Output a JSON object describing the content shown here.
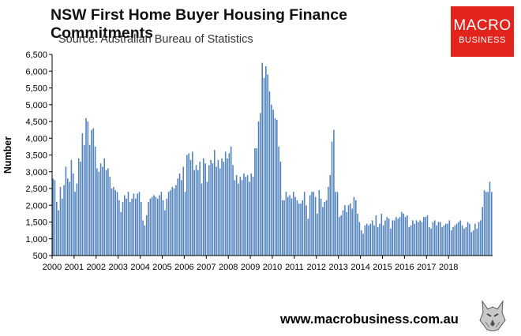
{
  "header": {
    "title": "NSW First Home Buyer Housing Finance Commitments",
    "subtitle": "Source: Australian Bureau of Statistics"
  },
  "logo": {
    "top": "MACRO",
    "bottom": "BUSINESS",
    "bg_color": "#e3241d"
  },
  "footer": {
    "url": "www.macrobusiness.com.au",
    "mascot": "wolf-icon"
  },
  "chart_data": {
    "type": "bar",
    "title": "NSW First Home Buyer Housing Finance Commitments",
    "ylabel": "Number",
    "xlabel": "",
    "ylim": [
      500,
      6500
    ],
    "yticks": [
      500,
      1000,
      1500,
      2000,
      2500,
      3000,
      3500,
      4000,
      4500,
      5000,
      5500,
      6000,
      6500
    ],
    "ytick_labels": [
      "500",
      "1,000",
      "1,500",
      "2,000",
      "2,500",
      "3,000",
      "3,500",
      "4,000",
      "4,500",
      "5,000",
      "5,500",
      "6,000",
      "6,500"
    ],
    "xticks": [
      "2000",
      "2001",
      "2002",
      "2003",
      "2004",
      "2005",
      "2006",
      "2007",
      "2008",
      "2009",
      "2010",
      "2011",
      "2012",
      "2013",
      "2014",
      "2015",
      "2016",
      "2017",
      "2018"
    ],
    "x_start": "2000-01",
    "frequency": "monthly",
    "bar_color": "#4f81bd",
    "grid": false,
    "legend": "none",
    "values": [
      2800,
      2750,
      2100,
      1850,
      2550,
      2200,
      2600,
      3150,
      2800,
      2700,
      3350,
      2950,
      2400,
      2650,
      3400,
      3300,
      4150,
      3800,
      4600,
      4500,
      3800,
      4250,
      4300,
      3750,
      3100,
      3000,
      3250,
      3150,
      3400,
      3050,
      3100,
      2850,
      2500,
      2550,
      2450,
      2400,
      2150,
      1800,
      2100,
      2300,
      2200,
      2400,
      2100,
      2200,
      2350,
      2200,
      2350,
      2400,
      2100,
      1550,
      1400,
      1700,
      2100,
      2200,
      2250,
      2300,
      2250,
      2200,
      2300,
      2400,
      2150,
      1850,
      2200,
      2400,
      2450,
      2550,
      2500,
      2600,
      2800,
      2950,
      2750,
      3150,
      2400,
      3500,
      3550,
      3350,
      3600,
      3050,
      3200,
      3050,
      3300,
      2650,
      3400,
      3250,
      2700,
      3200,
      3350,
      3250,
      3650,
      3150,
      3350,
      3100,
      3400,
      3300,
      3600,
      3400,
      3550,
      3750,
      3200,
      2750,
      2900,
      2650,
      2850,
      2750,
      2950,
      2850,
      2900,
      2700,
      2950,
      2850,
      3700,
      3700,
      4500,
      4750,
      6250,
      5800,
      6150,
      5900,
      5400,
      5000,
      4850,
      4600,
      4550,
      3750,
      3300,
      2150,
      2150,
      2400,
      2250,
      2300,
      2200,
      2400,
      2250,
      2150,
      2050,
      2050,
      2150,
      2400,
      2000,
      1600,
      2300,
      2400,
      2400,
      2250,
      1750,
      2450,
      2200,
      1950,
      2100,
      2150,
      2550,
      2900,
      3900,
      4250,
      2400,
      2400,
      1650,
      1700,
      1850,
      2000,
      1800,
      2000,
      2050,
      1900,
      2250,
      2150,
      1750,
      1500,
      1250,
      1150,
      1400,
      1450,
      1400,
      1450,
      1550,
      1400,
      1700,
      1350,
      1450,
      1750,
      1400,
      1550,
      1650,
      1600,
      1300,
      1550,
      1550,
      1650,
      1600,
      1650,
      1800,
      1750,
      1650,
      1700,
      1350,
      1400,
      1550,
      1450,
      1550,
      1500,
      1550,
      1500,
      1650,
      1650,
      1700,
      1350,
      1300,
      1500,
      1550,
      1400,
      1500,
      1500,
      1350,
      1400,
      1450,
      1450,
      1550,
      1250,
      1350,
      1400,
      1450,
      1500,
      1550,
      1400,
      1300,
      1350,
      1500,
      1450,
      1200,
      1250,
      1450,
      1300,
      1500,
      1550,
      1950,
      2450,
      2400,
      2400,
      2700,
      2400
    ]
  }
}
